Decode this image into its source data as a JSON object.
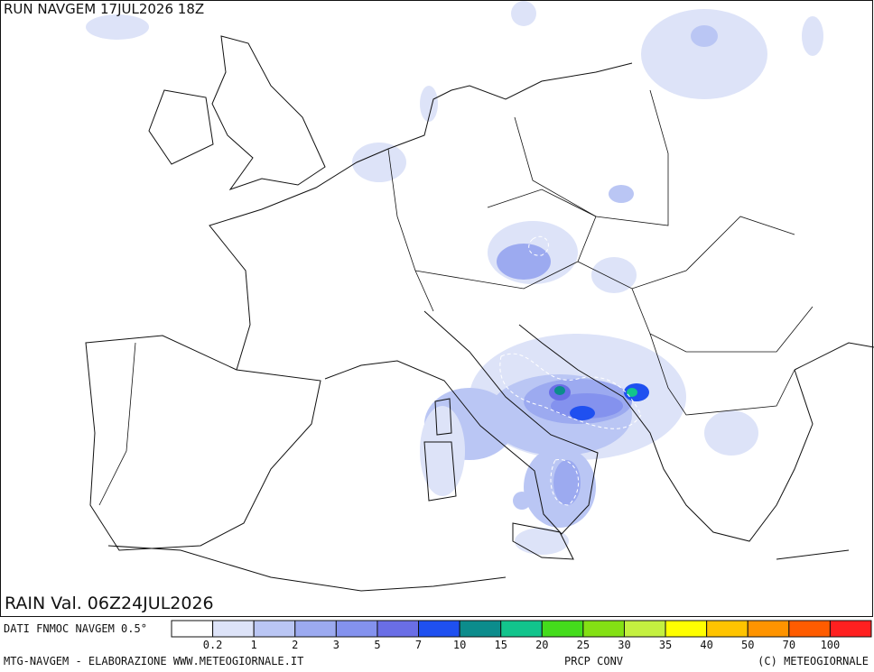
{
  "header": {
    "run": "RUN NAVGEM 17JUL2026 18Z",
    "valid": "RAIN Val. 06Z24JUL2026"
  },
  "legend": {
    "source": "DATI FNMOC NAVGEM 0.5°",
    "colors": [
      "#ffffff",
      "#dde3f8",
      "#bac6f4",
      "#9caaf0",
      "#8492ee",
      "#6a6ee6",
      "#1f50f0",
      "#0c8c8c",
      "#12c48c",
      "#44dc1c",
      "#84e014",
      "#c4f040",
      "#ffff00",
      "#ffc400",
      "#ff9400",
      "#ff5c00",
      "#ff2020"
    ],
    "labels": [
      0.2,
      1,
      2,
      3,
      5,
      7,
      10,
      15,
      20,
      25,
      30,
      35,
      40,
      50,
      70,
      100
    ]
  },
  "footer": {
    "credit": "MTG-NAVGEM - ELABORAZIONE WWW.METEOGIORNALE.IT",
    "product": "PRCP CONV",
    "copyright": "(C) METEOGIORNALE"
  }
}
